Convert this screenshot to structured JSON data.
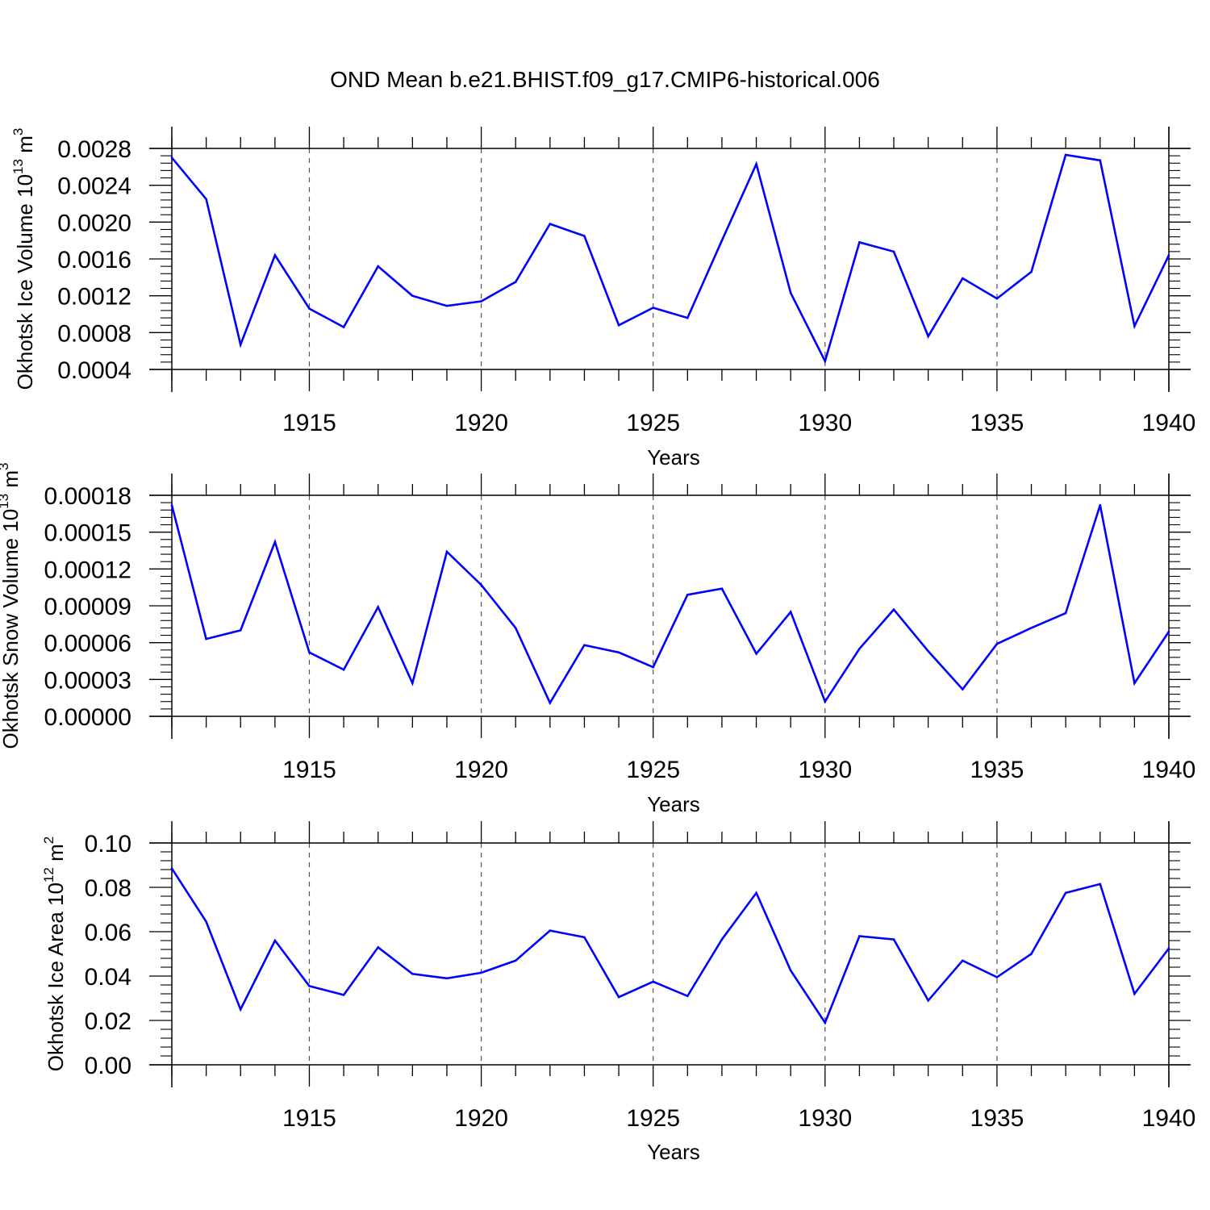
{
  "title": "OND Mean b.e21.BHIST.f09_g17.CMIP6-historical.006",
  "colors": {
    "series": "#0000ff",
    "axis": "#000000",
    "grid": "#555555"
  },
  "chart_data": [
    {
      "type": "line",
      "ylabel": {
        "text": "Okhotsk Ice Volume 10",
        "exp": "13",
        "unit": " m",
        "unit_exp": "3"
      },
      "xlabel": "Years",
      "xlim": [
        1911,
        1940
      ],
      "ylim": [
        0.0004,
        0.0028
      ],
      "y_major_ticks": [
        0.0004,
        0.0008,
        0.0012,
        0.0016,
        0.002,
        0.0024,
        0.0028
      ],
      "y_tick_labels": [
        "0.0004",
        "0.0008",
        "0.0012",
        "0.0016",
        "0.0020",
        "0.0024",
        "0.0028"
      ],
      "x_major_ticks": [
        1915,
        1920,
        1925,
        1930,
        1935,
        1940
      ],
      "x_tick_labels": [
        "1915",
        "1920",
        "1925",
        "1930",
        "1935",
        "1940"
      ],
      "grid": "vertical dashed at major x ticks",
      "x": [
        1911,
        1912,
        1913,
        1914,
        1915,
        1916,
        1917,
        1918,
        1919,
        1920,
        1921,
        1922,
        1923,
        1924,
        1925,
        1926,
        1927,
        1928,
        1929,
        1930,
        1931,
        1932,
        1933,
        1934,
        1935,
        1936,
        1937,
        1938,
        1939,
        1940
      ],
      "values": [
        0.0027,
        0.00225,
        0.00067,
        0.00164,
        0.00106,
        0.00086,
        0.00152,
        0.0012,
        0.00109,
        0.00114,
        0.00135,
        0.00198,
        0.00185,
        0.00088,
        0.00107,
        0.00096,
        0.0018,
        0.00263,
        0.00123,
        0.00049,
        0.00178,
        0.00168,
        0.00076,
        0.00139,
        0.00117,
        0.00146,
        0.00273,
        0.00267,
        0.00087,
        0.00164
      ]
    },
    {
      "type": "line",
      "ylabel": {
        "text": "Okhotsk Snow Volume 10",
        "exp": "13",
        "unit": " m",
        "unit_exp": "3"
      },
      "xlabel": "Years",
      "xlim": [
        1911,
        1940
      ],
      "ylim": [
        0.0,
        0.00018
      ],
      "y_major_ticks": [
        0.0,
        3e-05,
        6e-05,
        9e-05,
        0.00012,
        0.00015,
        0.00018
      ],
      "y_tick_labels": [
        "0.00000",
        "0.00003",
        "0.00006",
        "0.00009",
        "0.00012",
        "0.00015",
        "0.00018"
      ],
      "x_major_ticks": [
        1915,
        1920,
        1925,
        1930,
        1935,
        1940
      ],
      "x_tick_labels": [
        "1915",
        "1920",
        "1925",
        "1930",
        "1935",
        "1940"
      ],
      "grid": "vertical dashed at major x ticks",
      "x": [
        1911,
        1912,
        1913,
        1914,
        1915,
        1916,
        1917,
        1918,
        1919,
        1920,
        1921,
        1922,
        1923,
        1924,
        1925,
        1926,
        1927,
        1928,
        1929,
        1930,
        1931,
        1932,
        1933,
        1934,
        1935,
        1936,
        1937,
        1938,
        1939,
        1940
      ],
      "values": [
        0.000172,
        6.3e-05,
        7e-05,
        0.000142,
        5.2e-05,
        3.8e-05,
        8.9e-05,
        2.7e-05,
        0.000134,
        0.000107,
        7.2e-05,
        1.1e-05,
        5.8e-05,
        5.2e-05,
        4e-05,
        9.9e-05,
        0.000104,
        5.1e-05,
        8.5e-05,
        1.2e-05,
        5.5e-05,
        8.7e-05,
        5.3e-05,
        2.2e-05,
        5.9e-05,
        7.2e-05,
        8.4e-05,
        0.000172,
        2.7e-05,
        6.9e-05
      ]
    },
    {
      "type": "line",
      "ylabel": {
        "text": "Okhotsk Ice Area 10",
        "exp": "12",
        "unit": " m",
        "unit_exp": "2"
      },
      "xlabel": "Years",
      "xlim": [
        1911,
        1940
      ],
      "ylim": [
        0.0,
        0.1
      ],
      "y_major_ticks": [
        0.0,
        0.02,
        0.04,
        0.06,
        0.08,
        0.1
      ],
      "y_tick_labels": [
        "0.00",
        "0.02",
        "0.04",
        "0.06",
        "0.08",
        "0.10"
      ],
      "x_major_ticks": [
        1915,
        1920,
        1925,
        1930,
        1935,
        1940
      ],
      "x_tick_labels": [
        "1915",
        "1920",
        "1925",
        "1930",
        "1935",
        "1940"
      ],
      "grid": "vertical dashed at major x ticks",
      "x": [
        1911,
        1912,
        1913,
        1914,
        1915,
        1916,
        1917,
        1918,
        1919,
        1920,
        1921,
        1922,
        1923,
        1924,
        1925,
        1926,
        1927,
        1928,
        1929,
        1930,
        1931,
        1932,
        1933,
        1934,
        1935,
        1936,
        1937,
        1938,
        1939,
        1940
      ],
      "values": [
        0.0885,
        0.0645,
        0.025,
        0.056,
        0.0355,
        0.0315,
        0.053,
        0.041,
        0.039,
        0.0415,
        0.047,
        0.0605,
        0.0575,
        0.0305,
        0.0375,
        0.031,
        0.0565,
        0.0775,
        0.0425,
        0.019,
        0.058,
        0.0565,
        0.029,
        0.047,
        0.0395,
        0.05,
        0.0775,
        0.0815,
        0.032,
        0.0525
      ]
    }
  ]
}
